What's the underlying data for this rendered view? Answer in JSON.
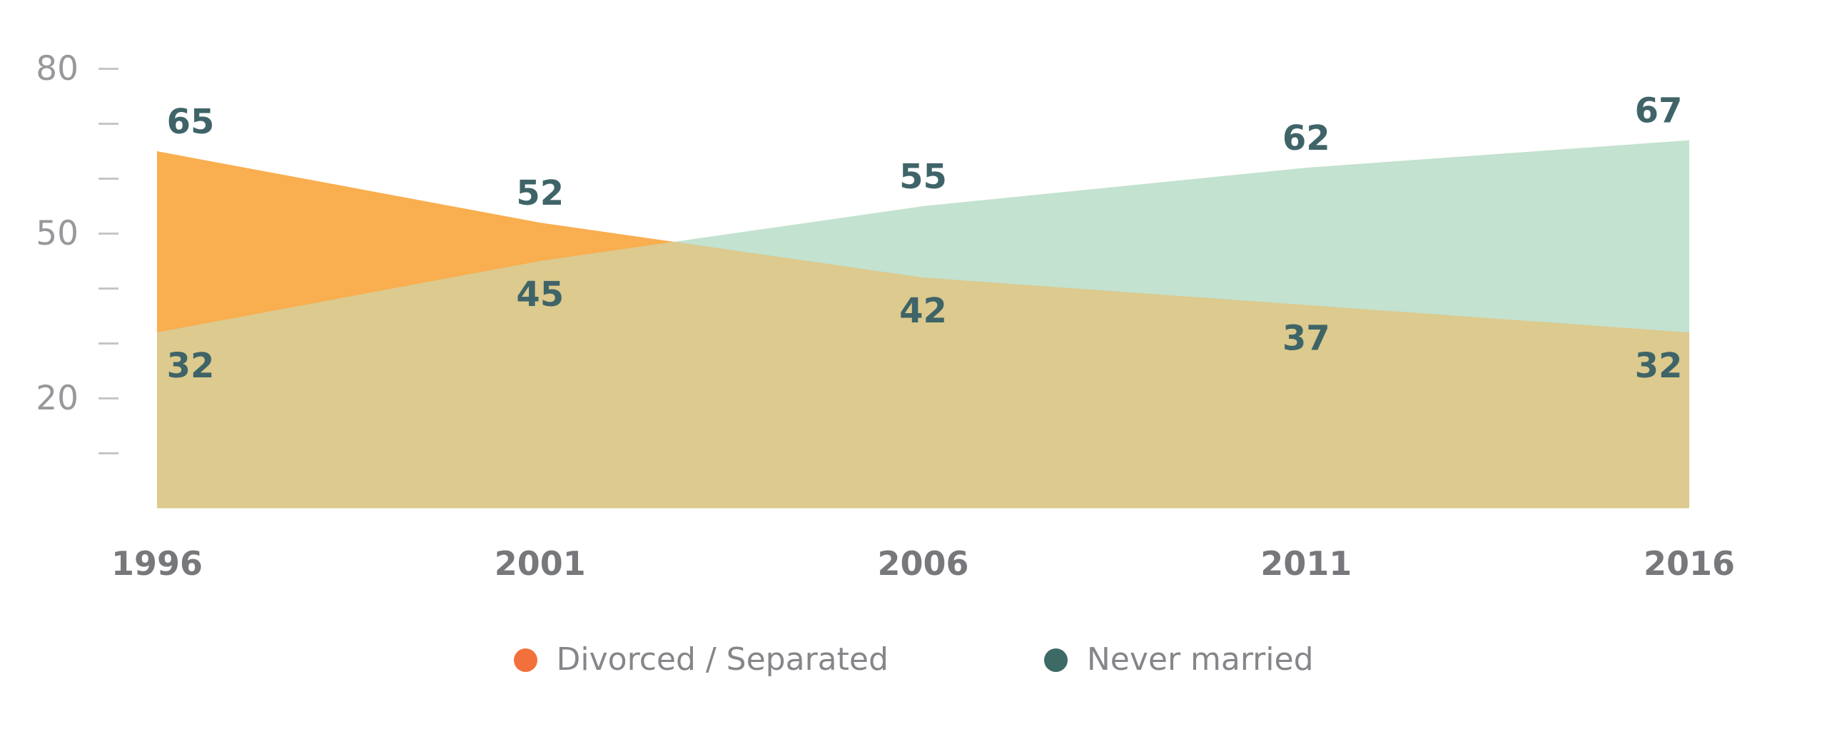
{
  "chart_data": {
    "type": "area",
    "title": "",
    "xlabel": "",
    "ylabel": "",
    "categories": [
      "1996",
      "2001",
      "2006",
      "2011",
      "2016"
    ],
    "series": [
      {
        "name": "Divorced / Separated",
        "values": [
          65,
          52,
          42,
          37,
          32
        ],
        "area_color": "#F9AE4F"
      },
      {
        "name": "Never married",
        "values": [
          32,
          45,
          55,
          62,
          67
        ],
        "area_color": "#C3E2CF"
      }
    ],
    "overlap_color": "#DCCA8E",
    "axis": {
      "y_min": 0,
      "y_max": 80,
      "y_ticks_all": [
        10,
        20,
        30,
        40,
        50,
        60,
        70,
        80
      ],
      "y_ticks_labeled": [
        20,
        50,
        80
      ],
      "grid": false
    },
    "colors": {
      "data_label": "#3F6468",
      "year_label": "#77787B",
      "axis_label": "#98989C",
      "tick": "#C6C6C9"
    },
    "legend_position": "bottom"
  },
  "legend": {
    "items": [
      {
        "label": "Divorced / Separated",
        "color": "#F2703B"
      },
      {
        "label": "Never married",
        "color": "#3E6A66"
      }
    ]
  }
}
